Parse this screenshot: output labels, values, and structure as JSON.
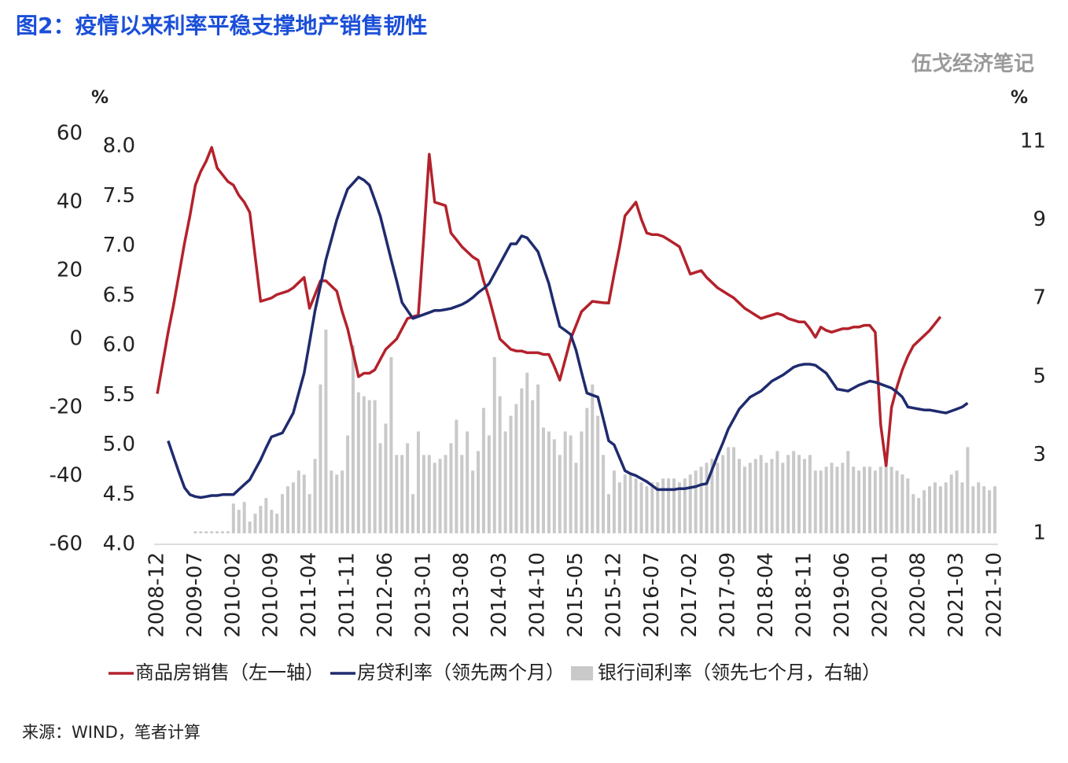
{
  "chart_data": {
    "type": "combo",
    "title": "图2：疫情以来利率平稳支撑地产销售韧性",
    "watermark": "伍戈经济笔记",
    "source": "来源：WIND，笔者计算",
    "y_unit": "%",
    "y2_unit": "%",
    "categories": [
      "2008-12",
      null,
      null,
      null,
      null,
      null,
      null,
      "2009-07",
      null,
      null,
      null,
      null,
      null,
      null,
      "2010-02",
      null,
      null,
      null,
      null,
      null,
      null,
      "2010-09",
      null,
      null,
      null,
      null,
      null,
      null,
      "2011-04",
      null,
      null,
      null,
      null,
      null,
      null,
      "2011-11",
      null,
      null,
      null,
      null,
      null,
      null,
      "2012-06",
      null,
      null,
      null,
      null,
      null,
      null,
      "2013-01",
      null,
      null,
      null,
      null,
      null,
      null,
      "2013-08",
      null,
      null,
      null,
      null,
      null,
      null,
      "2014-03",
      null,
      null,
      null,
      null,
      null,
      null,
      "2014-10",
      null,
      null,
      null,
      null,
      null,
      null,
      "2015-05",
      null,
      null,
      null,
      null,
      null,
      null,
      "2015-12",
      null,
      null,
      null,
      null,
      null,
      null,
      "2016-07",
      null,
      null,
      null,
      null,
      null,
      null,
      "2017-02",
      null,
      null,
      null,
      null,
      null,
      null,
      "2017-09",
      null,
      null,
      null,
      null,
      null,
      null,
      "2018-04",
      null,
      null,
      null,
      null,
      null,
      null,
      "2018-11",
      null,
      null,
      null,
      null,
      null,
      null,
      "2019-06",
      null,
      null,
      null,
      null,
      null,
      null,
      "2020-01",
      null,
      null,
      null,
      null,
      null,
      null,
      "2020-08",
      null,
      null,
      null,
      null,
      null,
      null,
      "2021-03",
      null,
      null,
      null,
      null,
      null,
      null,
      "2021-10"
    ],
    "ylim": [
      -60,
      60
    ],
    "yticks": [
      -60,
      -40,
      -20,
      0,
      20,
      40,
      60
    ],
    "y3lim": [
      4,
      8
    ],
    "y3ticks": [
      {
        "value": 4,
        "label": "4.0"
      },
      4.5,
      {
        "value": 5,
        "label": "5.0"
      },
      5.5,
      {
        "value": 6,
        "label": "6.0"
      },
      6.5,
      {
        "value": 7,
        "label": "7.0"
      },
      7.5,
      {
        "value": 8,
        "label": "8.0"
      }
    ],
    "y2lim": [
      1,
      11
    ],
    "y2ticks": [
      1,
      3,
      5,
      7,
      9,
      11
    ],
    "series": [
      {
        "name": "银行间利率（领先七个月，右轴）",
        "kind": "bar",
        "axis": "y2",
        "color": "#c9c9c9",
        "values": [
          null,
          null,
          null,
          null,
          null,
          null,
          null,
          1.05,
          1.05,
          1.05,
          1.05,
          1.05,
          1.05,
          1.05,
          1.76,
          1.6,
          1.8,
          1.3,
          1.5,
          1.7,
          1.9,
          1.6,
          1.5,
          2.0,
          2.2,
          2.3,
          2.6,
          2.5,
          2.0,
          2.9,
          4.8,
          6.2,
          2.6,
          2.5,
          2.6,
          3.5,
          5.8,
          4.6,
          4.5,
          4.4,
          4.4,
          3.3,
          3.8,
          5.5,
          3.0,
          3.0,
          3.3,
          2.0,
          3.6,
          3.0,
          3.0,
          2.8,
          2.9,
          3.0,
          3.3,
          3.9,
          3.0,
          3.6,
          2.6,
          3.1,
          4.2,
          3.5,
          5.5,
          4.5,
          3.6,
          4.0,
          4.3,
          4.7,
          5.1,
          4.4,
          4.8,
          3.7,
          3.6,
          3.4,
          3.0,
          3.6,
          3.5,
          2.8,
          3.6,
          4.2,
          4.8,
          4.0,
          3.0,
          2.0,
          2.6,
          2.3,
          2.5,
          2.5,
          2.4,
          2.3,
          2.2,
          2.3,
          2.3,
          2.4,
          2.4,
          2.4,
          2.3,
          2.4,
          2.5,
          2.6,
          2.7,
          2.8,
          2.9,
          2.8,
          3.0,
          3.2,
          3.2,
          2.9,
          2.7,
          2.8,
          2.9,
          3.0,
          2.8,
          2.9,
          3.1,
          2.8,
          3.0,
          3.1,
          3.0,
          2.9,
          3.0,
          2.6,
          2.6,
          2.7,
          2.8,
          2.7,
          2.8,
          3.1,
          2.7,
          2.6,
          2.7,
          2.7,
          2.6,
          2.7,
          2.8,
          2.7,
          2.6,
          2.5,
          2.4,
          2.0,
          1.9,
          2.1,
          2.2,
          2.3,
          2.2,
          2.3,
          2.5,
          2.6,
          2.3,
          3.2,
          2.2,
          2.3,
          2.2,
          2.1,
          2.2
        ]
      },
      {
        "name": "商品房销售（左一轴）",
        "kind": "line",
        "axis": "y",
        "color": "#b3222c",
        "values": [
          -16,
          -7,
          2,
          10,
          19,
          28,
          36,
          45,
          49,
          52,
          56,
          50,
          48,
          46,
          45,
          42,
          40,
          37,
          24,
          11,
          11.5,
          12,
          13,
          13.5,
          14,
          15,
          16.5,
          18,
          9,
          13,
          17,
          17,
          15.5,
          14,
          8,
          3,
          -4,
          -11,
          -10,
          -10,
          -9,
          -6,
          -3,
          -1.5,
          0,
          3,
          6,
          6.5,
          7,
          30,
          54,
          40,
          39.5,
          39,
          31,
          29,
          27,
          25.5,
          24,
          23,
          17,
          12,
          6,
          0,
          -1.5,
          -3,
          -3.5,
          -3.5,
          -4,
          -4,
          -4,
          -4.5,
          -4.5,
          -8,
          -12,
          -6,
          0,
          4,
          8,
          9.5,
          11,
          10.8,
          10.6,
          10.5,
          19,
          27,
          36,
          38,
          40,
          35,
          31,
          30.5,
          30.5,
          30,
          29,
          28,
          27,
          23,
          19,
          19.5,
          20,
          18,
          16.5,
          15,
          14,
          13,
          12,
          10.5,
          9,
          8,
          7,
          6,
          6.5,
          7,
          7.5,
          7,
          6,
          5.5,
          5,
          5,
          3,
          0.5,
          3.5,
          2.5,
          2,
          2.5,
          3,
          3,
          3.5,
          3.5,
          4,
          4,
          2,
          -25,
          -37,
          -20,
          -14,
          -9,
          -5,
          -2,
          -0.5,
          1,
          2.5,
          4.5,
          6.5,
          null,
          null,
          null,
          null,
          null,
          null,
          null,
          null,
          null,
          null
        ]
      },
      {
        "name": "房贷利率（领先两个月）",
        "kind": "line",
        "axis": "y3",
        "color": "#1f2b6e",
        "values": [
          null,
          null,
          5.04,
          4.88,
          4.72,
          4.57,
          4.5,
          4.48,
          4.47,
          4.48,
          4.49,
          4.49,
          4.5,
          4.5,
          4.5,
          4.55,
          4.6,
          4.65,
          4.75,
          4.85,
          4.97,
          5.08,
          5.1,
          5.12,
          5.22,
          5.32,
          5.52,
          5.72,
          6.03,
          6.35,
          6.6,
          6.86,
          7.06,
          7.26,
          7.42,
          7.57,
          7.63,
          7.69,
          7.66,
          7.61,
          7.46,
          7.3,
          7.08,
          6.86,
          6.65,
          6.43,
          6.35,
          6.27,
          6.29,
          6.31,
          6.33,
          6.35,
          6.35,
          6.36,
          6.37,
          6.39,
          6.41,
          6.44,
          6.48,
          6.53,
          6.57,
          6.62,
          6.72,
          6.82,
          6.92,
          7.02,
          7.02,
          7.1,
          7.08,
          7.01,
          6.94,
          6.78,
          6.62,
          6.4,
          6.19,
          6.15,
          6.11,
          5.95,
          5.73,
          5.52,
          5.5,
          5.48,
          5.26,
          5.04,
          5.0,
          4.87,
          4.74,
          4.71,
          4.69,
          4.66,
          4.63,
          4.59,
          4.55,
          4.55,
          4.55,
          4.55,
          4.56,
          4.56,
          4.57,
          4.58,
          4.6,
          4.61,
          4.75,
          4.89,
          5.02,
          5.16,
          5.26,
          5.36,
          5.42,
          5.48,
          5.51,
          5.54,
          5.59,
          5.64,
          5.67,
          5.7,
          5.74,
          5.78,
          5.8,
          5.81,
          5.81,
          5.8,
          5.76,
          5.72,
          5.64,
          5.56,
          5.55,
          5.54,
          5.57,
          5.6,
          5.62,
          5.64,
          5.63,
          5.61,
          5.59,
          5.57,
          5.53,
          5.48,
          5.38,
          5.37,
          5.36,
          5.35,
          5.35,
          5.34,
          5.33,
          5.32,
          5.34,
          5.36,
          5.38,
          5.42,
          null,
          null,
          null,
          null,
          null
        ]
      }
    ]
  }
}
